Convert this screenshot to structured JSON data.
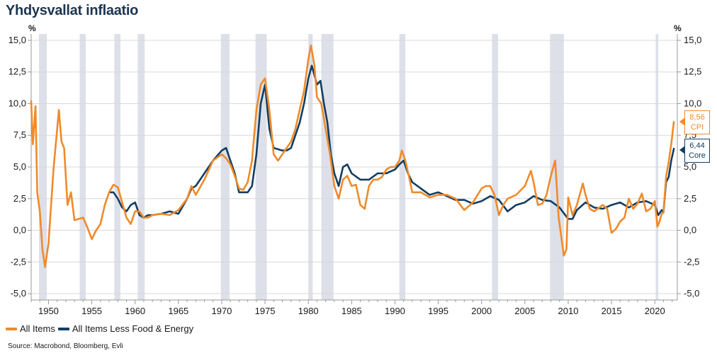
{
  "header": {
    "title": "Yhdysvallat inflaatio",
    "unit_left": "%",
    "unit_right": "%"
  },
  "legend": {
    "cpi_label": "All Items",
    "core_label": "All Items Less Food & Energy"
  },
  "source": "Source: Macrobond, Bloomberg, Evli",
  "colors": {
    "cpi": "#f08a2a",
    "core": "#123e62",
    "recession": "#dde0e8",
    "grid": "#d8d8d8"
  },
  "callouts": {
    "cpi_value": "8,56",
    "cpi_label": "CPI",
    "core_value": "6,44",
    "core_label": "Core"
  },
  "chart_data": {
    "type": "line",
    "title": "Yhdysvallat inflaatio",
    "ylabel": "%",
    "xlim": [
      1948,
      2022.6
    ],
    "ylim": [
      -5.5,
      15.5
    ],
    "x_ticks": [
      1950,
      1955,
      1960,
      1965,
      1970,
      1975,
      1980,
      1985,
      1990,
      1995,
      2000,
      2005,
      2010,
      2015,
      2020
    ],
    "y_ticks": [
      15,
      12.5,
      10,
      7.5,
      5,
      2.5,
      0,
      -2.5,
      -5
    ],
    "y_tick_labels": [
      "15,0",
      "12,5",
      "10,0",
      "7,5",
      "5,0",
      "2,5",
      "0,0",
      "-2,5",
      "-5,0"
    ],
    "recessions": [
      [
        1948.9,
        1949.8
      ],
      [
        1953.6,
        1954.3
      ],
      [
        1957.6,
        1958.3
      ],
      [
        1960.3,
        1961.1
      ],
      [
        1969.9,
        1970.9
      ],
      [
        1973.9,
        1975.2
      ],
      [
        1980.0,
        1980.5
      ],
      [
        1981.5,
        1982.9
      ],
      [
        1990.5,
        1991.2
      ],
      [
        2001.2,
        2001.9
      ],
      [
        2007.9,
        2009.5
      ],
      [
        2020.1,
        2020.4
      ]
    ],
    "series": [
      {
        "name": "All Items",
        "x": [
          1948.0,
          1948.2,
          1948.5,
          1948.7,
          1949.0,
          1949.3,
          1949.6,
          1950.0,
          1950.3,
          1950.6,
          1951.0,
          1951.2,
          1951.5,
          1951.8,
          1952.2,
          1952.6,
          1953.0,
          1953.5,
          1954.0,
          1954.5,
          1955.0,
          1955.5,
          1956.0,
          1956.5,
          1957.0,
          1957.5,
          1958.0,
          1958.5,
          1959.0,
          1959.5,
          1960.0,
          1960.5,
          1961.0,
          1961.5,
          1962.0,
          1963.0,
          1964.0,
          1965.0,
          1966.0,
          1966.5,
          1967.0,
          1968.0,
          1969.0,
          1970.0,
          1970.5,
          1971.0,
          1971.5,
          1972.0,
          1972.5,
          1973.0,
          1973.5,
          1974.0,
          1974.5,
          1975.0,
          1975.5,
          1976.0,
          1976.5,
          1977.0,
          1977.5,
          1978.0,
          1978.5,
          1979.0,
          1979.5,
          1980.0,
          1980.3,
          1980.7,
          1981.0,
          1981.5,
          1982.0,
          1982.5,
          1983.0,
          1983.5,
          1984.0,
          1984.5,
          1985.0,
          1985.5,
          1986.0,
          1986.5,
          1987.0,
          1987.5,
          1988.0,
          1988.5,
          1989.0,
          1989.5,
          1990.0,
          1990.5,
          1990.8,
          1991.2,
          1991.6,
          1992.0,
          1993.0,
          1994.0,
          1995.0,
          1996.0,
          1997.0,
          1998.0,
          1999.0,
          2000.0,
          2000.5,
          2001.0,
          2001.5,
          2002.0,
          2002.5,
          2003.0,
          2004.0,
          2005.0,
          2005.7,
          2006.0,
          2006.5,
          2007.0,
          2007.5,
          2008.0,
          2008.5,
          2008.9,
          2009.2,
          2009.5,
          2009.8,
          2010.0,
          2010.5,
          2011.0,
          2011.7,
          2012.0,
          2012.5,
          2013.0,
          2014.0,
          2014.5,
          2015.0,
          2015.5,
          2016.0,
          2016.5,
          2017.0,
          2017.5,
          2018.0,
          2018.5,
          2019.0,
          2019.5,
          2020.0,
          2020.3,
          2020.5,
          2020.8,
          2021.0,
          2021.3,
          2021.6,
          2021.9,
          2022.2
        ],
        "values": [
          10.2,
          6.8,
          9.8,
          3.0,
          1.5,
          -1.5,
          -2.9,
          -1.0,
          2.0,
          5.0,
          8.0,
          9.5,
          7.0,
          6.5,
          2.0,
          3.0,
          0.8,
          0.9,
          1.0,
          0.2,
          -0.7,
          0.0,
          0.5,
          2.0,
          3.0,
          3.6,
          3.4,
          2.2,
          1.0,
          0.5,
          1.5,
          1.5,
          1.0,
          1.0,
          1.2,
          1.3,
          1.2,
          1.6,
          2.5,
          3.5,
          2.8,
          4.0,
          5.5,
          6.0,
          5.7,
          5.2,
          4.3,
          3.3,
          3.2,
          3.8,
          5.5,
          9.5,
          11.5,
          12.0,
          9.5,
          6.0,
          5.5,
          6.0,
          6.5,
          7.0,
          8.0,
          9.5,
          11.0,
          13.5,
          14.6,
          13.0,
          10.5,
          10.0,
          8.0,
          6.0,
          3.5,
          2.5,
          4.0,
          4.3,
          3.5,
          3.6,
          2.0,
          1.7,
          3.5,
          4.0,
          4.0,
          4.2,
          4.8,
          5.0,
          5.0,
          5.5,
          6.3,
          5.5,
          4.3,
          3.0,
          3.0,
          2.6,
          2.8,
          2.8,
          2.5,
          1.6,
          2.2,
          3.3,
          3.5,
          3.5,
          2.8,
          1.2,
          2.0,
          2.5,
          2.8,
          3.5,
          4.7,
          3.8,
          2.0,
          2.1,
          2.8,
          4.3,
          5.5,
          1.0,
          -0.5,
          -2.0,
          -1.5,
          2.6,
          1.2,
          2.0,
          3.7,
          2.8,
          1.7,
          1.5,
          2.0,
          1.7,
          -0.2,
          0.1,
          0.7,
          1.0,
          2.5,
          1.7,
          2.1,
          2.9,
          1.5,
          1.7,
          2.3,
          0.3,
          0.6,
          1.3,
          1.4,
          4.2,
          5.4,
          6.8,
          8.56
        ]
      },
      {
        "name": "All Items Less Food & Energy",
        "x": [
          1957.0,
          1957.5,
          1958.0,
          1958.5,
          1959.0,
          1959.5,
          1960.0,
          1960.5,
          1961.0,
          1961.5,
          1962.0,
          1963.0,
          1964.0,
          1965.0,
          1966.0,
          1966.5,
          1967.0,
          1968.0,
          1969.0,
          1970.0,
          1970.5,
          1971.0,
          1971.5,
          1972.0,
          1973.0,
          1973.5,
          1974.0,
          1974.5,
          1975.0,
          1975.5,
          1976.0,
          1977.0,
          1977.5,
          1978.0,
          1978.5,
          1979.0,
          1979.5,
          1980.0,
          1980.4,
          1980.8,
          1981.0,
          1981.4,
          1981.8,
          1982.2,
          1982.6,
          1983.0,
          1983.5,
          1984.0,
          1984.5,
          1985.0,
          1986.0,
          1987.0,
          1988.0,
          1989.0,
          1990.0,
          1990.5,
          1991.0,
          1991.5,
          1992.0,
          1993.0,
          1994.0,
          1995.0,
          1996.0,
          1997.0,
          1998.0,
          1999.0,
          2000.0,
          2001.0,
          2002.0,
          2003.0,
          2004.0,
          2005.0,
          2006.0,
          2007.0,
          2008.0,
          2009.0,
          2010.0,
          2010.5,
          2011.0,
          2012.0,
          2013.0,
          2014.0,
          2015.0,
          2016.0,
          2017.0,
          2018.0,
          2019.0,
          2020.0,
          2020.4,
          2020.8,
          2021.0,
          2021.3,
          2021.6,
          2021.9,
          2022.2
        ],
        "values": [
          3.0,
          3.0,
          2.5,
          1.8,
          1.5,
          2.0,
          2.2,
          1.2,
          1.0,
          1.2,
          1.2,
          1.3,
          1.5,
          1.3,
          2.5,
          3.3,
          3.5,
          4.5,
          5.5,
          6.3,
          6.5,
          5.5,
          4.5,
          3.0,
          3.0,
          3.5,
          6.0,
          10.0,
          11.5,
          8.0,
          6.5,
          6.3,
          6.3,
          6.5,
          7.5,
          8.5,
          10.0,
          12.0,
          13.0,
          12.0,
          11.5,
          11.8,
          10.0,
          8.5,
          6.0,
          4.5,
          3.5,
          5.0,
          5.2,
          4.5,
          4.0,
          4.0,
          4.5,
          4.5,
          4.8,
          5.2,
          5.5,
          4.5,
          3.8,
          3.3,
          2.8,
          3.0,
          2.7,
          2.4,
          2.4,
          2.1,
          2.3,
          2.7,
          2.4,
          1.5,
          2.0,
          2.2,
          2.7,
          2.4,
          2.3,
          1.8,
          0.9,
          0.9,
          1.6,
          2.2,
          1.8,
          1.7,
          2.0,
          2.2,
          1.8,
          2.2,
          2.3,
          2.0,
          1.2,
          1.6,
          1.4,
          3.8,
          4.2,
          5.5,
          6.44
        ]
      }
    ]
  }
}
